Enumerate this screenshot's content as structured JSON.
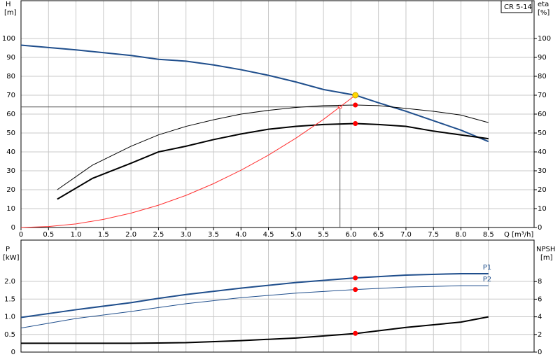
{
  "chart_data": [
    {
      "type": "line",
      "product": "CR 5-14",
      "y_label": "H",
      "y_unit": "[m]",
      "y2_label": "eta",
      "y2_unit": "[%]",
      "x_label": "Q [m³/h]",
      "xlim": [
        0,
        9.33
      ],
      "ylim": [
        0,
        120
      ],
      "y2lim": [
        0,
        120
      ],
      "grid": true,
      "xticks": [
        0,
        0.5,
        {
          "value": 1,
          "label": "1.0"
        },
        1.5,
        {
          "value": 2,
          "label": "2.0"
        },
        2.5,
        {
          "value": 3,
          "label": "3.0"
        },
        3.5,
        {
          "value": 4,
          "label": "4.0"
        },
        4.5,
        {
          "value": 5,
          "label": "5.0"
        },
        5.5,
        {
          "value": 6,
          "label": "6.0"
        },
        6.5,
        {
          "value": 7,
          "label": "7.0"
        },
        7.5,
        {
          "value": 8,
          "label": "8.0"
        },
        8.5
      ],
      "yticks": [
        0,
        10,
        20,
        30,
        40,
        50,
        60,
        70,
        80,
        90,
        100
      ],
      "y2ticks": [
        0,
        10,
        20,
        30,
        40,
        50,
        60,
        70,
        80,
        90,
        100
      ],
      "series": [
        {
          "color": "#1f4e8c",
          "width": 2,
          "x": [
            0,
            1,
            2,
            2.5,
            3,
            3.5,
            4,
            4.5,
            5,
            5.5,
            6.08,
            6.5,
            7,
            7.5,
            8,
            8.5
          ],
          "values": [
            96.5,
            94,
            91,
            89,
            88,
            86,
            83.5,
            80.5,
            77,
            73,
            70,
            66,
            61.5,
            56.5,
            51.5,
            45.5
          ]
        },
        {
          "color": "#000000",
          "width": 1,
          "axis": "y2",
          "x": [
            0.66,
            1.3,
            2,
            2.5,
            3,
            3.5,
            4,
            4.5,
            5,
            5.5,
            6.08,
            6.5,
            7,
            7.5,
            8,
            8.5
          ],
          "values": [
            20,
            33,
            43,
            49,
            53.5,
            57,
            60,
            62,
            63.5,
            64.5,
            64.8,
            64.5,
            63,
            61.5,
            59.5,
            55.5
          ]
        },
        {
          "color": "#000000",
          "width": 2,
          "axis": "y2",
          "x": [
            0.66,
            1.3,
            2,
            2.5,
            3,
            3.5,
            4,
            4.5,
            5,
            5.5,
            6.08,
            6.5,
            7,
            7.5,
            8,
            8.5
          ],
          "values": [
            15,
            26,
            34,
            40,
            43,
            46.5,
            49.5,
            52,
            53.5,
            54.5,
            55,
            54.5,
            53.5,
            51,
            49,
            47
          ]
        },
        {
          "color": "#ff3030",
          "width": 1,
          "x": [
            0,
            0.5,
            1,
            1.5,
            2,
            2.5,
            3,
            3.5,
            4,
            4.5,
            5,
            5.5,
            6.08
          ],
          "values": [
            0,
            0.5,
            1.9,
            4.3,
            7.6,
            11.8,
            17,
            23.2,
            30.3,
            38.3,
            47.3,
            57.2,
            70
          ]
        }
      ],
      "markers": [
        {
          "x": 6.08,
          "y": 70,
          "color": "#ffd700"
        },
        {
          "x": 6.08,
          "y": 64.8,
          "color": "#ff0000"
        },
        {
          "x": 6.08,
          "y": 55,
          "color": "#ff0000"
        }
      ],
      "duty_point": {
        "x": 5.8,
        "y": 63.8
      }
    },
    {
      "type": "line",
      "y_label": "P",
      "y_unit": "[kW]",
      "y2_label": "NPSH",
      "y2_unit": "[m]",
      "ylim": [
        0,
        3.17
      ],
      "y2lim": [
        0,
        12.7
      ],
      "grid": true,
      "yticks": [
        0,
        0.5,
        {
          "value": 1,
          "label": "1.0"
        },
        1.5,
        {
          "value": 2,
          "label": "2.0"
        }
      ],
      "y2ticks": [
        0,
        2,
        4,
        6,
        8
      ],
      "series": [
        {
          "name": "P1",
          "color": "#1f4e8c",
          "width": 2,
          "x": [
            0,
            1,
            2,
            2.5,
            3,
            4,
            5,
            6.08,
            7,
            8,
            8.5
          ],
          "values": [
            0.98,
            1.2,
            1.4,
            1.52,
            1.63,
            1.81,
            1.97,
            2.1,
            2.18,
            2.22,
            2.22
          ]
        },
        {
          "name": "P2",
          "color": "#1f4e8c",
          "width": 1,
          "x": [
            0,
            1,
            2,
            2.5,
            3,
            4,
            5,
            6.08,
            7,
            8,
            8.5
          ],
          "values": [
            0.68,
            0.95,
            1.15,
            1.26,
            1.37,
            1.54,
            1.67,
            1.77,
            1.84,
            1.88,
            1.88
          ]
        },
        {
          "color": "#000000",
          "width": 2,
          "axis": "y2",
          "x": [
            0,
            1,
            2,
            2.5,
            3,
            4,
            5,
            6.08,
            7,
            8,
            8.5
          ],
          "values": [
            1,
            1,
            1,
            1.03,
            1.07,
            1.3,
            1.6,
            2.1,
            2.8,
            3.4,
            4
          ]
        }
      ],
      "markers": [
        {
          "x": 6.08,
          "y": 2.1,
          "color": "#ff0000"
        },
        {
          "x": 6.08,
          "y": 1.77,
          "color": "#ff0000"
        },
        {
          "x": 6.08,
          "y": 0.53,
          "color": "#ff0000"
        }
      ]
    }
  ]
}
